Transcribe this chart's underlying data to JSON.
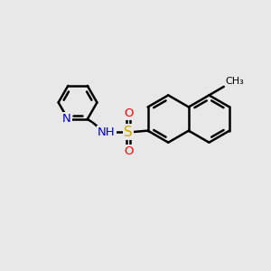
{
  "bg_color": "#e8e8e8",
  "bond_color": "#000000",
  "bond_width": 1.8,
  "atom_colors": {
    "N": "#0000cc",
    "S": "#ccaa00",
    "O": "#ff0000",
    "C": "#000000"
  },
  "xlim": [
    0,
    10
  ],
  "ylim": [
    0,
    10
  ],
  "figsize": [
    3.0,
    3.0
  ],
  "dpi": 100
}
